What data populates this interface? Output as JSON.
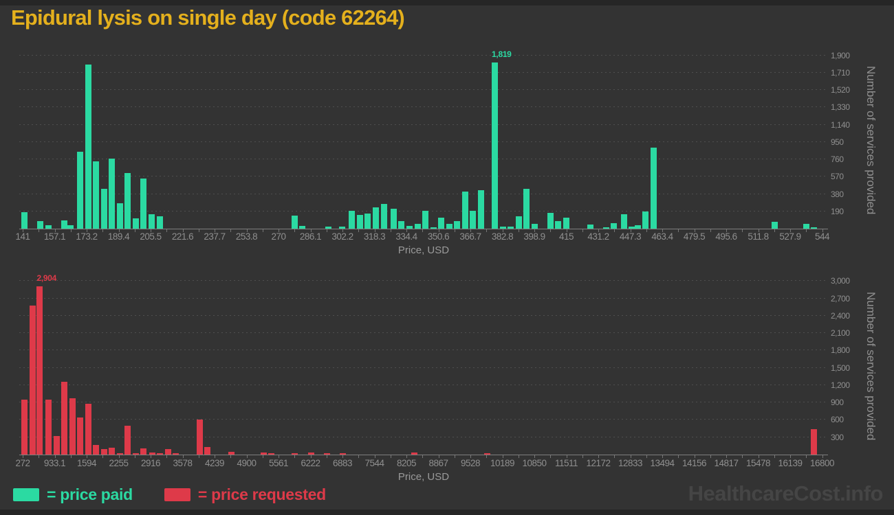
{
  "page": {
    "title": "Epidural lysis on single day (code 62264)",
    "watermark": "HealthcareCost.info"
  },
  "legend": {
    "paid_label": "= price paid",
    "requested_label": "= price requested"
  },
  "colors": {
    "paid": "#2BDAA2",
    "requested": "#DE3A49",
    "title": "#E4B01D",
    "background": "#333333",
    "edge": "#262626",
    "axis_line": "#7E7E7E",
    "grid": "#4F4F4F",
    "tick_text": "#8F8F8F",
    "axis_title_text": "#9A9A9A",
    "watermark": "#454545"
  },
  "chart_data": [
    {
      "type": "bar",
      "series": "price paid",
      "color": "#2BDAA2",
      "xlabel": "Price, USD",
      "ylabel": "Number of services provided",
      "x_tick_labels": [
        "141",
        "157.1",
        "173.2",
        "189.4",
        "205.5",
        "221.6",
        "237.7",
        "253.8",
        "270",
        "286.1",
        "302.2",
        "318.3",
        "334.4",
        "350.6",
        "366.7",
        "382.8",
        "398.9",
        "415",
        "431.2",
        "447.3",
        "463.4",
        "479.5",
        "495.6",
        "511.8",
        "527.9",
        "544"
      ],
      "y_tick_labels": [
        "190",
        "380",
        "570",
        "760",
        "950",
        "1,140",
        "1,330",
        "1,520",
        "1,710",
        "1,900"
      ],
      "ylim": [
        0,
        1943
      ],
      "grid": "dashed",
      "annotation": {
        "x": 379,
        "y": 1819,
        "label": "1,819"
      },
      "bars": [
        [
          142,
          180
        ],
        [
          150,
          85
        ],
        [
          154,
          40
        ],
        [
          162,
          90
        ],
        [
          165,
          40
        ],
        [
          170,
          845
        ],
        [
          174,
          1800
        ],
        [
          178,
          740
        ],
        [
          182,
          437
        ],
        [
          186,
          768
        ],
        [
          190,
          277
        ],
        [
          194,
          613
        ],
        [
          198,
          111
        ],
        [
          202,
          552
        ],
        [
          206,
          157
        ],
        [
          210,
          137
        ],
        [
          278,
          142
        ],
        [
          282,
          27
        ],
        [
          295,
          25
        ],
        [
          302,
          20
        ],
        [
          307,
          195
        ],
        [
          311,
          150
        ],
        [
          315,
          163
        ],
        [
          319,
          234
        ],
        [
          323,
          270
        ],
        [
          328,
          218
        ],
        [
          332,
          86
        ],
        [
          336,
          30
        ],
        [
          340,
          53
        ],
        [
          344,
          195
        ],
        [
          348,
          15
        ],
        [
          352,
          124
        ],
        [
          356,
          52
        ],
        [
          360,
          81
        ],
        [
          364,
          404
        ],
        [
          368,
          195
        ],
        [
          372,
          422
        ],
        [
          379,
          1819
        ],
        [
          383,
          25
        ],
        [
          387,
          25
        ],
        [
          391,
          137
        ],
        [
          395,
          437
        ],
        [
          399,
          53
        ],
        [
          407,
          175
        ],
        [
          411,
          81
        ],
        [
          415,
          117
        ],
        [
          427,
          48
        ],
        [
          435,
          18
        ],
        [
          439,
          58
        ],
        [
          444,
          157
        ],
        [
          448,
          22
        ],
        [
          451,
          35
        ],
        [
          455,
          188
        ],
        [
          459,
          890
        ],
        [
          520,
          79
        ],
        [
          536,
          53
        ],
        [
          540,
          18
        ]
      ]
    },
    {
      "type": "bar",
      "series": "price requested",
      "color": "#DE3A49",
      "xlabel": "Price, USD",
      "ylabel": "Number of services provided",
      "x_tick_labels": [
        "272",
        "933.1",
        "1594",
        "2255",
        "2916",
        "3578",
        "4239",
        "4900",
        "5561",
        "6222",
        "6883",
        "7544",
        "8205",
        "8867",
        "9528",
        "10189",
        "10850",
        "11511",
        "12172",
        "12833",
        "13494",
        "14156",
        "14817",
        "15478",
        "16139",
        "16800"
      ],
      "y_tick_labels": [
        "300",
        "600",
        "900",
        "1,200",
        "1,500",
        "1,800",
        "2,100",
        "2,400",
        "2,700",
        "3,000"
      ],
      "ylim": [
        0,
        3051
      ],
      "grid": "dashed",
      "annotation": {
        "x": 627,
        "y": 2904,
        "label": "2,904"
      },
      "bars": [
        [
          310,
          955
        ],
        [
          478,
          2580
        ],
        [
          627,
          2904
        ],
        [
          805,
          955
        ],
        [
          976,
          324
        ],
        [
          1132,
          1260
        ],
        [
          1296,
          975
        ],
        [
          1459,
          637
        ],
        [
          1630,
          878
        ],
        [
          1793,
          172
        ],
        [
          1957,
          91
        ],
        [
          2120,
          119
        ],
        [
          2284,
          20
        ],
        [
          2447,
          504
        ],
        [
          2611,
          25
        ],
        [
          2774,
          104
        ],
        [
          2945,
          30
        ],
        [
          3108,
          20
        ],
        [
          3272,
          91
        ],
        [
          3435,
          15
        ],
        [
          3933,
          600
        ],
        [
          4089,
          131
        ],
        [
          4587,
          52
        ],
        [
          5255,
          35
        ],
        [
          5411,
          15
        ],
        [
          5902,
          20
        ],
        [
          6243,
          35
        ],
        [
          6570,
          18
        ],
        [
          6890,
          10
        ],
        [
          8369,
          38
        ],
        [
          9876,
          18
        ],
        [
          16632,
          445
        ]
      ]
    }
  ]
}
